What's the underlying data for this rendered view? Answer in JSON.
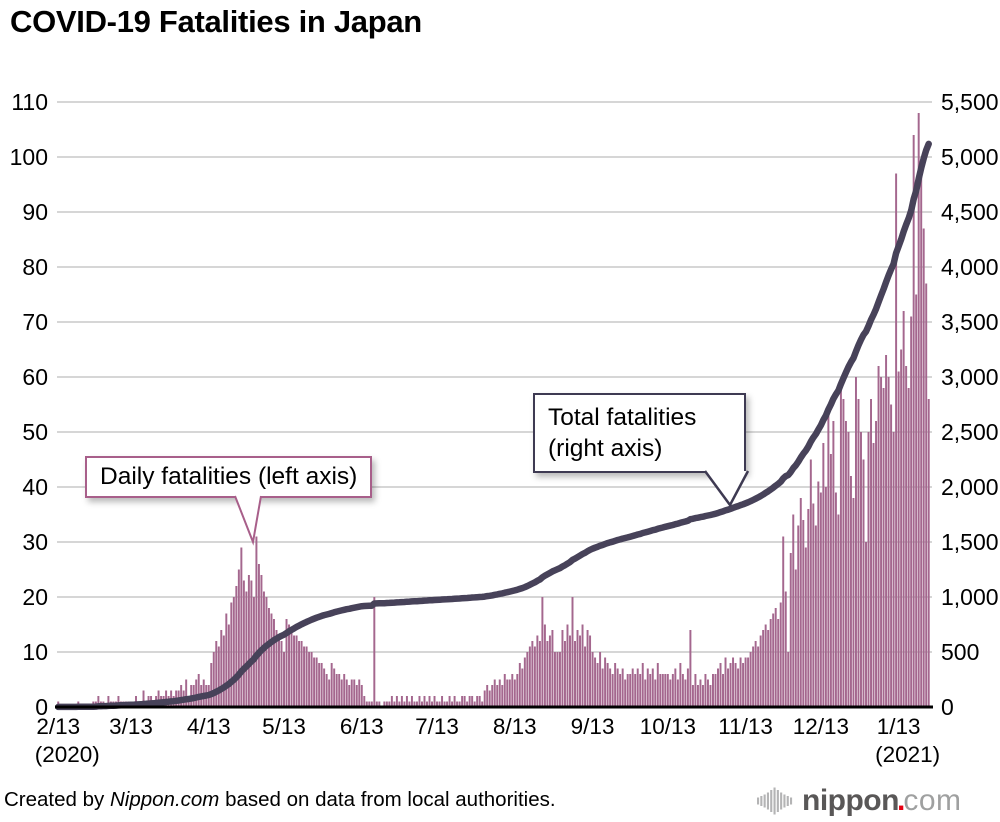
{
  "title": "COVID-19 Fatalities in Japan",
  "chart_data": {
    "type": "bar+line",
    "start_date": "2/13",
    "start_year_label": "(2020)",
    "end_year_label": "(2021)",
    "left_axis": {
      "ticks": [
        0,
        10,
        20,
        30,
        40,
        50,
        60,
        70,
        80,
        90,
        100,
        110
      ],
      "max": 110,
      "series": "Daily fatalities"
    },
    "right_axis": {
      "tick_labels": [
        "0",
        "500",
        "1,000",
        "1,500",
        "2,000",
        "2,500",
        "3,000",
        "3,500",
        "4,000",
        "4,500",
        "5,000",
        "5,500"
      ],
      "max": 5500,
      "series": "Total fatalities"
    },
    "x_ticks": [
      {
        "label": "2/13",
        "day": 0
      },
      {
        "label": "3/13",
        "day": 29
      },
      {
        "label": "4/13",
        "day": 60
      },
      {
        "label": "5/13",
        "day": 90
      },
      {
        "label": "6/13",
        "day": 121
      },
      {
        "label": "7/13",
        "day": 151
      },
      {
        "label": "8/13",
        "day": 182
      },
      {
        "label": "9/13",
        "day": 213
      },
      {
        "label": "10/13",
        "day": 243
      },
      {
        "label": "11/13",
        "day": 274
      },
      {
        "label": "12/13",
        "day": 304
      },
      {
        "label": "1/13",
        "day": 335
      }
    ],
    "year_labels": [
      {
        "text": "(2020)",
        "anchor": "first"
      },
      {
        "text": "(2021)",
        "anchor": "last"
      }
    ],
    "daily_fatalities": [
      1,
      0,
      0,
      0,
      0,
      0,
      0,
      0,
      1,
      0,
      0,
      0,
      0,
      0,
      1,
      1,
      2,
      1,
      1,
      0,
      2,
      1,
      1,
      1,
      2,
      1,
      1,
      1,
      1,
      1,
      1,
      2,
      1,
      1,
      3,
      1,
      2,
      2,
      1,
      2,
      3,
      2,
      2,
      3,
      2,
      3,
      2,
      3,
      3,
      4,
      3,
      5,
      2,
      4,
      4,
      5,
      6,
      4,
      5,
      4,
      4,
      8,
      10,
      12,
      11,
      14,
      13,
      17,
      15,
      19,
      20,
      22,
      25,
      29,
      23,
      21,
      24,
      23,
      20,
      31,
      26,
      24,
      21,
      20,
      18,
      17,
      16,
      14,
      13,
      12,
      10,
      16,
      15,
      14,
      13,
      13,
      12,
      12,
      11,
      11,
      10,
      10,
      9,
      9,
      8,
      8,
      7,
      6,
      5,
      8,
      7,
      6,
      6,
      5,
      6,
      5,
      4,
      5,
      5,
      4,
      5,
      4,
      2,
      1,
      1,
      1,
      20,
      1,
      1,
      0,
      1,
      1,
      1,
      2,
      1,
      2,
      1,
      2,
      1,
      2,
      1,
      2,
      1,
      1,
      2,
      1,
      2,
      1,
      2,
      1,
      2,
      1,
      1,
      2,
      1,
      1,
      2,
      1,
      2,
      1,
      1,
      2,
      2,
      1,
      2,
      2,
      1,
      2,
      2,
      1,
      3,
      4,
      3,
      4,
      5,
      4,
      5,
      4,
      6,
      5,
      5,
      6,
      5,
      6,
      8,
      7,
      9,
      10,
      11,
      12,
      11,
      13,
      12,
      20,
      15,
      12,
      13,
      14,
      10,
      10,
      10,
      14,
      12,
      15,
      13,
      20,
      12,
      14,
      13,
      15,
      11,
      14,
      13,
      10,
      9,
      8,
      10,
      7,
      9,
      8,
      7,
      6,
      8,
      7,
      6,
      7,
      5,
      6,
      6,
      7,
      6,
      7,
      6,
      8,
      5,
      7,
      6,
      7,
      5,
      8,
      6,
      6,
      6,
      6,
      5,
      6,
      7,
      5,
      8,
      6,
      5,
      7,
      14,
      4,
      6,
      4,
      5,
      4,
      6,
      5,
      4,
      6,
      6,
      7,
      8,
      6,
      9,
      7,
      8,
      9,
      8,
      7,
      9,
      8,
      9,
      9,
      10,
      11,
      12,
      11,
      13,
      14,
      15,
      14,
      16,
      17,
      18,
      16,
      19,
      31,
      21,
      10,
      28,
      35,
      25,
      33,
      38,
      34,
      29,
      36,
      45,
      37,
      33,
      41,
      39,
      48,
      40,
      55,
      46,
      52,
      39,
      35,
      58,
      56,
      52,
      50,
      42,
      38,
      60,
      56,
      50,
      45,
      30,
      50,
      56,
      48,
      52,
      62,
      60,
      58,
      64,
      60,
      55,
      50,
      97,
      61,
      65,
      72,
      62,
      58,
      71,
      104,
      75,
      108,
      97,
      87,
      77,
      56
    ],
    "total_series": {
      "definition": "cumulative sum of daily_fatalities",
      "end_value": 5119
    },
    "annotations": [
      {
        "text": "Daily fatalities (left axis)"
      },
      {
        "line1": "Total fatalities",
        "line2": "(right axis)"
      }
    ],
    "colors": {
      "bar": "#a4678e",
      "total_line": "#474259",
      "gridline": "#c9c9c9",
      "axis_line": "#000000",
      "daily_callout_border": "#a85f8a",
      "total_callout_border": "#3e3a52"
    }
  },
  "footer": {
    "credit_prefix": "Created by ",
    "credit_source": "Nippon.com",
    "credit_suffix": " based on data from local authorities.",
    "logo": {
      "word": "nippon",
      "dot": ".",
      "tld": "com",
      "word_color": "#595757",
      "tld_color": "#9fa0a0",
      "dot_color": "#e60012",
      "icon_color": "#b4b4b5"
    }
  }
}
